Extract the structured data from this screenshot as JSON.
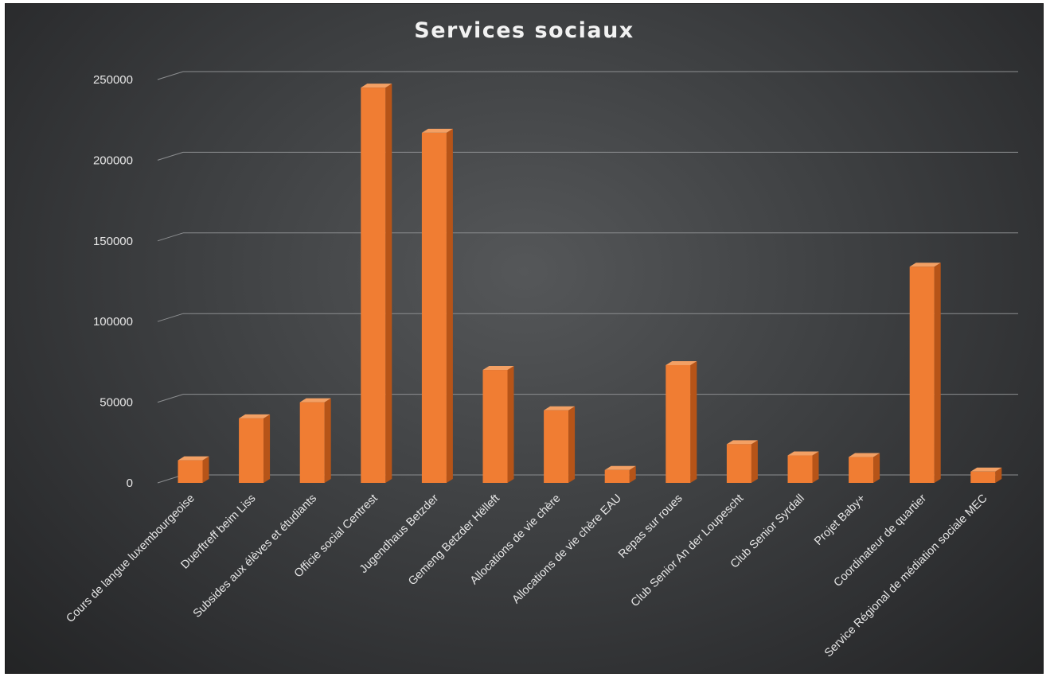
{
  "chart_data": {
    "type": "bar",
    "title": "Services sociaux",
    "xlabel": "",
    "ylabel": "",
    "ylim": [
      0,
      250000
    ],
    "yticks": [
      0,
      50000,
      100000,
      150000,
      200000,
      250000
    ],
    "grid": true,
    "legend": "none",
    "categories": [
      "Cours de langue luxembourgeoise",
      "Duerftreff beim Liss",
      "Subsides aux élèves et étudiants",
      "Officie social Centrest",
      "Jugendhaus Betzder",
      "Gemeng Betzder Hëlleft",
      "Allocations de vie chère",
      "Allocations de vie chère EAU",
      "Repas sur roues",
      "Club Senior An der Loupescht",
      "Club Senior Syrdall",
      "Projet Baby+",
      "Coordinateur de quartier",
      "Service Régional de médiation sociale MEC"
    ],
    "values": [
      14000,
      40000,
      50000,
      245000,
      217000,
      70000,
      45000,
      8000,
      73000,
      24000,
      17000,
      16000,
      134000,
      7000
    ],
    "colors": {
      "bar_front": "#f07d33",
      "bar_top": "#f3a064",
      "bar_side": "#b65418",
      "grid": "#8c8e90",
      "text": "#e6e6e6"
    }
  }
}
